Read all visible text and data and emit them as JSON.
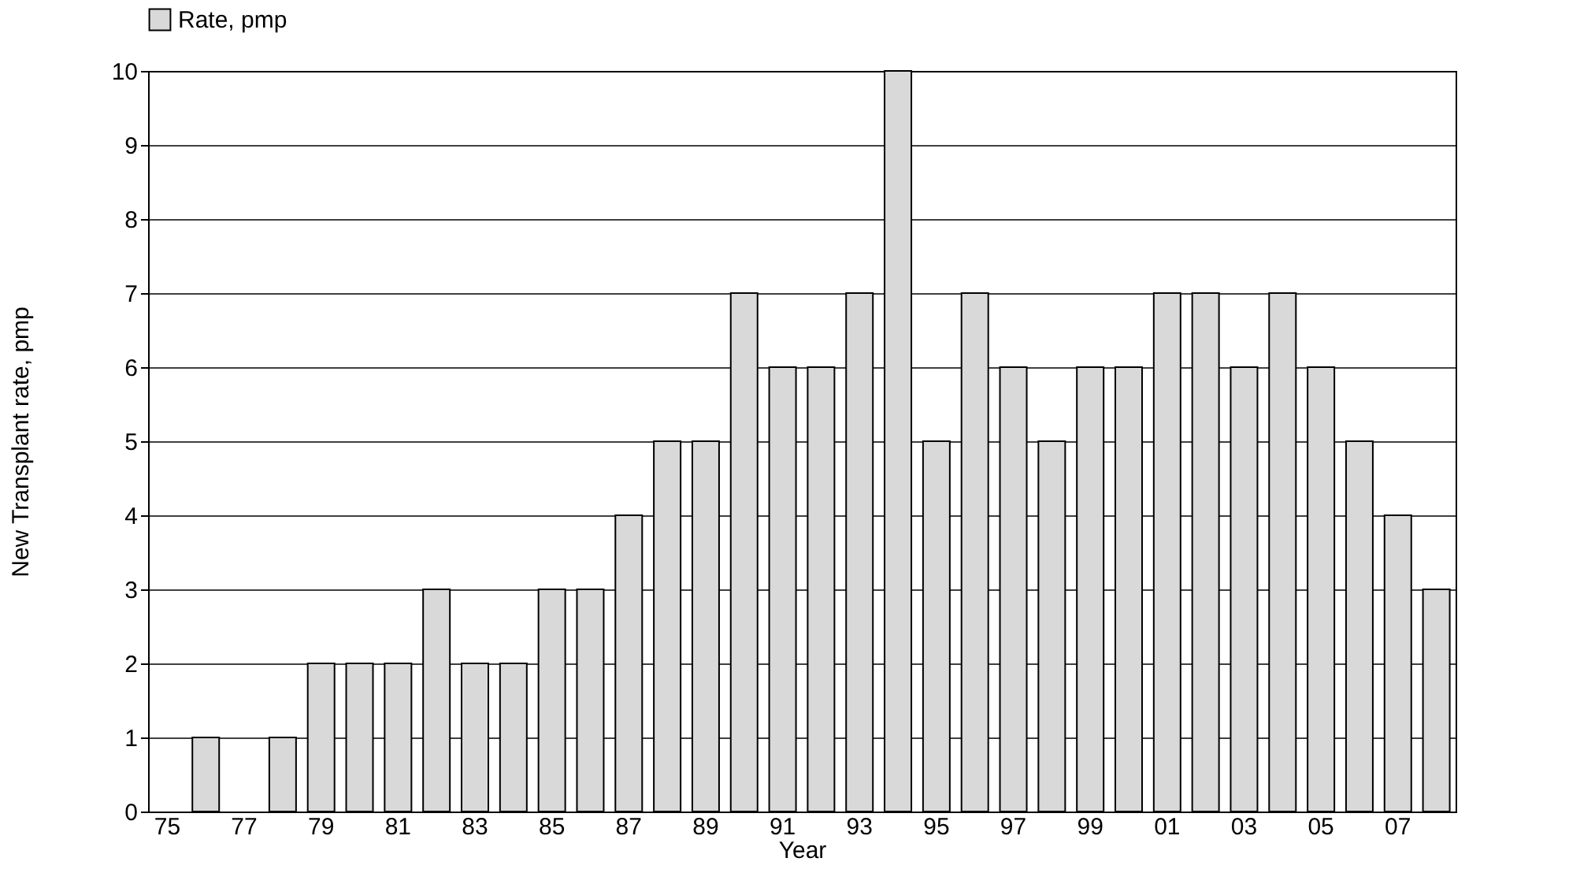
{
  "chart_data": {
    "type": "bar",
    "xlabel": "Year",
    "ylabel": "New Transplant rate, pmp",
    "categories": [
      "75",
      null,
      "77",
      null,
      "79",
      null,
      "81",
      null,
      "83",
      null,
      "85",
      null,
      "87",
      null,
      "89",
      null,
      "91",
      null,
      "93",
      null,
      "95",
      null,
      "97",
      null,
      "99",
      null,
      "01",
      null,
      "03",
      null,
      "05",
      null,
      "07",
      null
    ],
    "series": [
      {
        "name": "Rate, pmp",
        "color": "#d9d9d9",
        "values": [
          0,
          1,
          0,
          1,
          2,
          2,
          2,
          3,
          2,
          2,
          3,
          3,
          4,
          5,
          5,
          7,
          6,
          6,
          7,
          10,
          5,
          7,
          6,
          5,
          6,
          6,
          7,
          7,
          6,
          7,
          6,
          5,
          4,
          3
        ]
      }
    ],
    "ylim": [
      0,
      10
    ],
    "yticks": [
      0,
      1,
      2,
      3,
      4,
      5,
      6,
      7,
      8,
      9,
      10
    ],
    "grid": "y",
    "legend": "top left"
  }
}
